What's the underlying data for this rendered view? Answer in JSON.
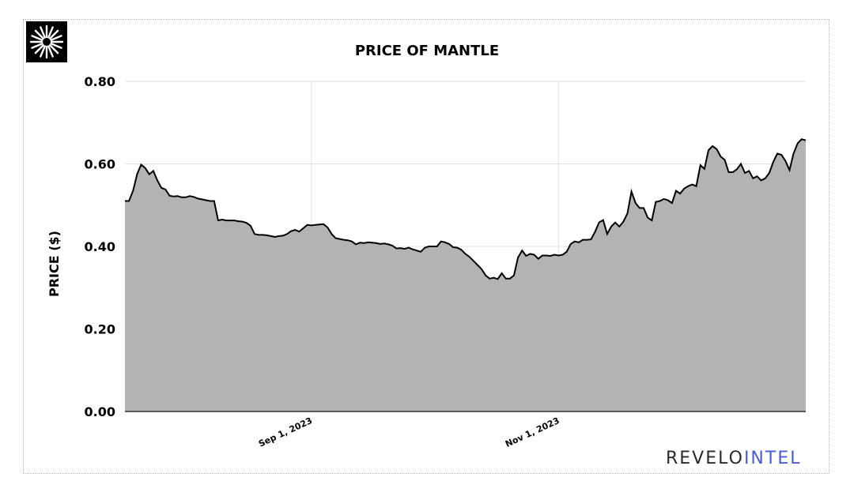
{
  "logo": {
    "icon": "starburst-icon",
    "background": "#000000"
  },
  "chart_data": {
    "type": "area",
    "title": "PRICE OF MANTLE",
    "xlabel": "",
    "ylabel": "PRICE ($)",
    "ylim": [
      0,
      0.8
    ],
    "y_ticks": [
      "0.00",
      "0.20",
      "0.40",
      "0.60",
      "0.80"
    ],
    "y_tick_values": [
      0,
      0.2,
      0.4,
      0.6,
      0.8
    ],
    "x_ticks": [
      "Sep 1, 2023",
      "Nov 1, 2023"
    ],
    "x_tick_dates": [
      "2023-09-01",
      "2023-11-01"
    ],
    "x_range": [
      "2023-07-17",
      "2023-12-31"
    ],
    "grid": true,
    "fill_color": "#b3b3b3",
    "line_color": "#000000",
    "series": [
      {
        "values": [
          [
            "2023-07-17",
            0.51
          ],
          [
            "2023-07-18",
            0.51
          ],
          [
            "2023-07-19",
            0.535
          ],
          [
            "2023-07-20",
            0.575
          ],
          [
            "2023-07-21",
            0.598
          ],
          [
            "2023-07-22",
            0.59
          ],
          [
            "2023-07-23",
            0.575
          ],
          [
            "2023-07-24",
            0.583
          ],
          [
            "2023-07-25",
            0.56
          ],
          [
            "2023-07-26",
            0.542
          ],
          [
            "2023-07-27",
            0.538
          ],
          [
            "2023-07-28",
            0.523
          ],
          [
            "2023-07-29",
            0.521
          ],
          [
            "2023-07-30",
            0.522
          ],
          [
            "2023-07-31",
            0.519
          ],
          [
            "2023-08-01",
            0.519
          ],
          [
            "2023-08-02",
            0.522
          ],
          [
            "2023-08-03",
            0.52
          ],
          [
            "2023-08-04",
            0.516
          ],
          [
            "2023-08-05",
            0.514
          ],
          [
            "2023-08-06",
            0.512
          ],
          [
            "2023-08-07",
            0.51
          ],
          [
            "2023-08-08",
            0.51
          ],
          [
            "2023-08-09",
            0.463
          ],
          [
            "2023-08-10",
            0.465
          ],
          [
            "2023-08-11",
            0.463
          ],
          [
            "2023-08-12",
            0.463
          ],
          [
            "2023-08-13",
            0.463
          ],
          [
            "2023-08-14",
            0.461
          ],
          [
            "2023-08-15",
            0.46
          ],
          [
            "2023-08-16",
            0.457
          ],
          [
            "2023-08-17",
            0.45
          ],
          [
            "2023-08-18",
            0.43
          ],
          [
            "2023-08-19",
            0.428
          ],
          [
            "2023-08-20",
            0.428
          ],
          [
            "2023-08-21",
            0.427
          ],
          [
            "2023-08-22",
            0.425
          ],
          [
            "2023-08-23",
            0.423
          ],
          [
            "2023-08-24",
            0.425
          ],
          [
            "2023-08-25",
            0.426
          ],
          [
            "2023-08-26",
            0.43
          ],
          [
            "2023-08-27",
            0.437
          ],
          [
            "2023-08-28",
            0.44
          ],
          [
            "2023-08-29",
            0.436
          ],
          [
            "2023-08-30",
            0.444
          ],
          [
            "2023-08-31",
            0.452
          ],
          [
            "2023-09-01",
            0.451
          ],
          [
            "2023-09-02",
            0.452
          ],
          [
            "2023-09-03",
            0.453
          ],
          [
            "2023-09-04",
            0.454
          ],
          [
            "2023-09-05",
            0.446
          ],
          [
            "2023-09-06",
            0.43
          ],
          [
            "2023-09-07",
            0.42
          ],
          [
            "2023-09-08",
            0.418
          ],
          [
            "2023-09-09",
            0.416
          ],
          [
            "2023-09-10",
            0.415
          ],
          [
            "2023-09-11",
            0.412
          ],
          [
            "2023-09-12",
            0.405
          ],
          [
            "2023-09-13",
            0.409
          ],
          [
            "2023-09-14",
            0.408
          ],
          [
            "2023-09-15",
            0.41
          ],
          [
            "2023-09-16",
            0.409
          ],
          [
            "2023-09-17",
            0.408
          ],
          [
            "2023-09-18",
            0.406
          ],
          [
            "2023-09-19",
            0.407
          ],
          [
            "2023-09-20",
            0.405
          ],
          [
            "2023-09-21",
            0.402
          ],
          [
            "2023-09-22",
            0.395
          ],
          [
            "2023-09-23",
            0.396
          ],
          [
            "2023-09-24",
            0.394
          ],
          [
            "2023-09-25",
            0.397
          ],
          [
            "2023-09-26",
            0.393
          ],
          [
            "2023-09-27",
            0.39
          ],
          [
            "2023-09-28",
            0.387
          ],
          [
            "2023-09-29",
            0.397
          ],
          [
            "2023-09-30",
            0.4
          ],
          [
            "2023-10-01",
            0.4
          ],
          [
            "2023-10-02",
            0.4
          ],
          [
            "2023-10-03",
            0.412
          ],
          [
            "2023-10-04",
            0.41
          ],
          [
            "2023-10-05",
            0.406
          ],
          [
            "2023-10-06",
            0.398
          ],
          [
            "2023-10-07",
            0.397
          ],
          [
            "2023-10-08",
            0.392
          ],
          [
            "2023-10-09",
            0.382
          ],
          [
            "2023-10-10",
            0.375
          ],
          [
            "2023-10-11",
            0.365
          ],
          [
            "2023-10-12",
            0.355
          ],
          [
            "2023-10-13",
            0.345
          ],
          [
            "2023-10-14",
            0.33
          ],
          [
            "2023-10-15",
            0.322
          ],
          [
            "2023-10-16",
            0.324
          ],
          [
            "2023-10-17",
            0.321
          ],
          [
            "2023-10-18",
            0.335
          ],
          [
            "2023-10-19",
            0.322
          ],
          [
            "2023-10-20",
            0.322
          ],
          [
            "2023-10-21",
            0.33
          ],
          [
            "2023-10-22",
            0.373
          ],
          [
            "2023-10-23",
            0.39
          ],
          [
            "2023-10-24",
            0.377
          ],
          [
            "2023-10-25",
            0.382
          ],
          [
            "2023-10-26",
            0.38
          ],
          [
            "2023-10-27",
            0.37
          ],
          [
            "2023-10-28",
            0.378
          ],
          [
            "2023-10-29",
            0.378
          ],
          [
            "2023-10-30",
            0.377
          ],
          [
            "2023-10-31",
            0.38
          ],
          [
            "2023-11-01",
            0.378
          ],
          [
            "2023-11-02",
            0.38
          ],
          [
            "2023-11-03",
            0.387
          ],
          [
            "2023-11-04",
            0.406
          ],
          [
            "2023-11-05",
            0.412
          ],
          [
            "2023-11-06",
            0.41
          ],
          [
            "2023-11-07",
            0.416
          ],
          [
            "2023-11-08",
            0.416
          ],
          [
            "2023-11-09",
            0.417
          ],
          [
            "2023-11-10",
            0.435
          ],
          [
            "2023-11-11",
            0.458
          ],
          [
            "2023-11-12",
            0.464
          ],
          [
            "2023-11-13",
            0.43
          ],
          [
            "2023-11-14",
            0.448
          ],
          [
            "2023-11-15",
            0.458
          ],
          [
            "2023-11-16",
            0.448
          ],
          [
            "2023-11-17",
            0.46
          ],
          [
            "2023-11-18",
            0.48
          ],
          [
            "2023-11-19",
            0.533
          ],
          [
            "2023-11-20",
            0.505
          ],
          [
            "2023-11-21",
            0.493
          ],
          [
            "2023-11-22",
            0.493
          ],
          [
            "2023-11-23",
            0.47
          ],
          [
            "2023-11-24",
            0.463
          ],
          [
            "2023-11-25",
            0.508
          ],
          [
            "2023-11-26",
            0.51
          ],
          [
            "2023-11-27",
            0.515
          ],
          [
            "2023-11-28",
            0.512
          ],
          [
            "2023-11-29",
            0.505
          ],
          [
            "2023-11-30",
            0.535
          ],
          [
            "2023-12-01",
            0.528
          ],
          [
            "2023-12-02",
            0.54
          ],
          [
            "2023-12-03",
            0.546
          ],
          [
            "2023-12-04",
            0.55
          ],
          [
            "2023-12-05",
            0.546
          ],
          [
            "2023-12-06",
            0.597
          ],
          [
            "2023-12-07",
            0.588
          ],
          [
            "2023-12-08",
            0.633
          ],
          [
            "2023-12-09",
            0.643
          ],
          [
            "2023-12-10",
            0.636
          ],
          [
            "2023-12-11",
            0.618
          ],
          [
            "2023-12-12",
            0.61
          ],
          [
            "2023-12-13",
            0.58
          ],
          [
            "2023-12-14",
            0.58
          ],
          [
            "2023-12-15",
            0.587
          ],
          [
            "2023-12-16",
            0.6
          ],
          [
            "2023-12-17",
            0.578
          ],
          [
            "2023-12-18",
            0.583
          ],
          [
            "2023-12-19",
            0.565
          ],
          [
            "2023-12-20",
            0.57
          ],
          [
            "2023-12-21",
            0.56
          ],
          [
            "2023-12-22",
            0.565
          ],
          [
            "2023-12-23",
            0.578
          ],
          [
            "2023-12-24",
            0.605
          ],
          [
            "2023-12-25",
            0.625
          ],
          [
            "2023-12-26",
            0.622
          ],
          [
            "2023-12-27",
            0.607
          ],
          [
            "2023-12-28",
            0.585
          ],
          [
            "2023-12-29",
            0.625
          ],
          [
            "2023-12-30",
            0.65
          ],
          [
            "2023-12-31",
            0.66
          ],
          [
            "2024-01-01",
            0.657
          ]
        ]
      }
    ]
  },
  "brand": {
    "part1": "REVELO",
    "part2": "INTEL"
  }
}
